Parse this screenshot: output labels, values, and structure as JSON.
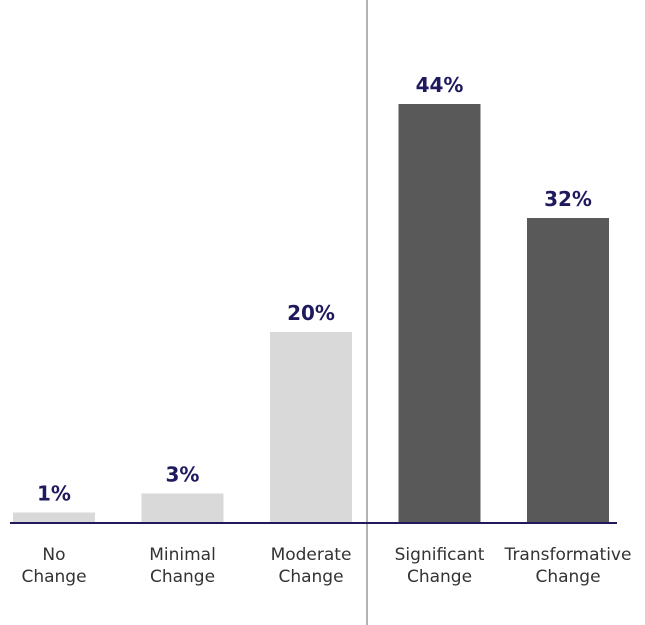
{
  "chart_data": {
    "type": "bar",
    "categories": [
      "No Change",
      "Minimal Change",
      "Moderate Change",
      "Significant Change",
      "Transformative Change"
    ],
    "values": [
      1,
      3,
      20,
      44,
      32
    ],
    "value_labels": [
      "1%",
      "3%",
      "20%",
      "44%",
      "32%"
    ],
    "colors": [
      "#d9d9d9",
      "#d9d9d9",
      "#d9d9d9",
      "#595959",
      "#595959"
    ]
  }
}
